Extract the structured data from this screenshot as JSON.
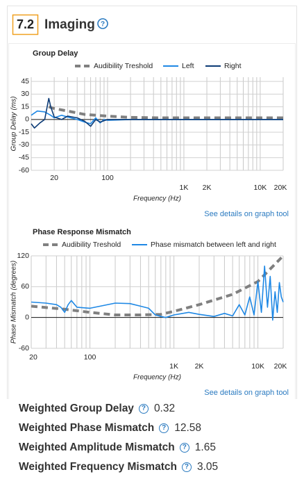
{
  "header": {
    "number": "7.2",
    "title": "Imaging"
  },
  "help": "?",
  "chart_data": [
    {
      "type": "line",
      "title": "Group Delay",
      "xlabel": "Frequency (Hz)",
      "ylabel": "Group Delay (ms)",
      "xscale": "log",
      "xlim": [
        10,
        20000
      ],
      "xticks": [
        20,
        100,
        {
          "value": 1000,
          "label": "1K"
        },
        {
          "value": 2000,
          "label": "2K"
        },
        {
          "value": 10000,
          "label": "10K"
        },
        {
          "value": 20000,
          "label": "20K"
        }
      ],
      "xgrid": [
        10,
        20,
        30,
        40,
        50,
        60,
        70,
        80,
        90,
        100,
        200,
        300,
        400,
        500,
        600,
        700,
        800,
        900,
        1000,
        2000,
        3000,
        4000,
        5000,
        6000,
        7000,
        8000,
        9000,
        10000,
        20000
      ],
      "ylim": [
        -60,
        50
      ],
      "yticks": [
        -60,
        -45,
        -30,
        -15,
        0,
        15,
        30,
        45
      ],
      "series": [
        {
          "name": "Audibility Treshold",
          "color": "#808080",
          "dashed": true,
          "x": [
            17,
            20,
            30,
            50,
            100,
            200,
            500,
            1000,
            20000
          ],
          "values": [
            15,
            13,
            10,
            6,
            4,
            2.5,
            2,
            2,
            2
          ]
        },
        {
          "name": "Left",
          "color": "#1e88e5",
          "dashed": false,
          "x": [
            10,
            12,
            15,
            18,
            20,
            25,
            30,
            40,
            50,
            60,
            70,
            80,
            90,
            100,
            200,
            1000,
            20000
          ],
          "values": [
            5,
            10,
            9,
            5,
            2,
            5,
            3,
            0,
            -3,
            -5,
            2,
            -4,
            0,
            -1,
            0,
            0,
            0
          ]
        },
        {
          "name": "Right",
          "color": "#0b3a75",
          "dashed": false,
          "x": [
            10,
            11,
            13,
            15,
            17,
            18,
            20,
            25,
            30,
            40,
            50,
            60,
            70,
            80,
            100,
            200,
            20000
          ],
          "values": [
            -5,
            -10,
            -4,
            0,
            25,
            15,
            3,
            0,
            4,
            2,
            -2,
            -8,
            0,
            -3,
            0,
            0,
            0
          ]
        }
      ]
    },
    {
      "type": "line",
      "title": "Phase Response Mismatch",
      "xlabel": "Frequency (Hz)",
      "ylabel": "Phase Mismatch (degrees)",
      "xscale": "log",
      "xlim": [
        20,
        20000
      ],
      "xticks": [
        20,
        100,
        {
          "value": 1000,
          "label": "1K"
        },
        {
          "value": 2000,
          "label": "2K"
        },
        {
          "value": 10000,
          "label": "10K"
        },
        {
          "value": 20000,
          "label": "20K"
        }
      ],
      "xgrid": [
        20,
        30,
        40,
        50,
        60,
        70,
        80,
        90,
        100,
        200,
        300,
        400,
        500,
        600,
        700,
        800,
        900,
        1000,
        2000,
        3000,
        4000,
        5000,
        6000,
        7000,
        8000,
        9000,
        10000,
        20000
      ],
      "ylim": [
        -60,
        120
      ],
      "yticks": [
        -60,
        0,
        60,
        120
      ],
      "series": [
        {
          "name": "Audibility Treshold",
          "color": "#808080",
          "dashed": true,
          "x": [
            20,
            50,
            100,
            200,
            400,
            700,
            1000,
            2000,
            5000,
            10000,
            20000
          ],
          "values": [
            22,
            16,
            10,
            5,
            5,
            6,
            12,
            25,
            45,
            70,
            120
          ]
        },
        {
          "name": "Phase mismatch between left and right",
          "color": "#1e88e5",
          "dashed": false,
          "x": [
            20,
            30,
            40,
            45,
            50,
            55,
            60,
            70,
            100,
            200,
            300,
            400,
            500,
            600,
            700,
            800,
            1000,
            1500,
            2000,
            3000,
            4000,
            5000,
            6000,
            7000,
            8000,
            9000,
            10000,
            11000,
            12000,
            13000,
            14000,
            15000,
            16000,
            17000,
            18000,
            19000,
            20000
          ],
          "values": [
            30,
            28,
            25,
            20,
            10,
            25,
            33,
            20,
            18,
            28,
            27,
            22,
            18,
            5,
            2,
            0,
            5,
            10,
            6,
            2,
            8,
            3,
            25,
            5,
            40,
            5,
            70,
            10,
            100,
            20,
            80,
            -5,
            50,
            10,
            68,
            40,
            30
          ]
        }
      ]
    }
  ],
  "links": [
    "See details on graph tool",
    "See details on graph tool"
  ],
  "metrics": [
    {
      "label": "Weighted Group Delay",
      "value": 0.32
    },
    {
      "label": "Weighted Phase Mismatch",
      "value": 12.58
    },
    {
      "label": "Weighted Amplitude Mismatch",
      "value": 1.65
    },
    {
      "label": "Weighted Frequency Mismatch",
      "value": 3.05
    }
  ]
}
